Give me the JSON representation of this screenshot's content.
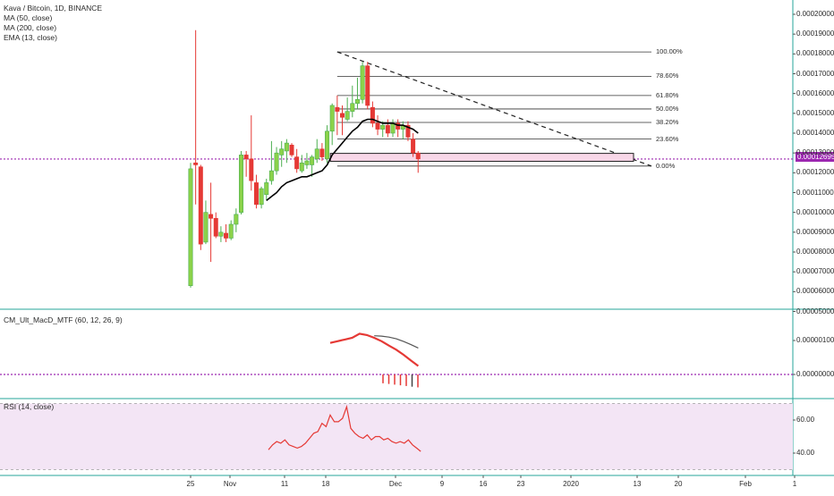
{
  "header": {
    "symbol_line": "Kava / Bitcoin, 1D, BINANCE",
    "indicators": [
      "MA (50, close)",
      "MA (200, close)",
      "EMA (13, close)"
    ]
  },
  "panes": {
    "macd_title": "CM_Ult_MacD_MTF (60, 12, 26, 9)",
    "rsi_title": "RSI (14, close)"
  },
  "last_price": "0.00012695",
  "colors": {
    "up": "#4caf50",
    "up_fill": "#8bd24a",
    "down": "#e53935",
    "purple": "#9c27b0",
    "teal": "#26a69a",
    "rsi_band": "#f3e5f5",
    "ema": "#000000"
  },
  "chart_data": [
    {
      "type": "candlestick",
      "pane": "price",
      "x_axis_ticks": [
        "25",
        "Nov",
        "11",
        "18",
        "Dec",
        "9",
        "16",
        "23",
        "2020",
        "13",
        "20",
        "Feb",
        "1"
      ],
      "y_axis_ticks": [
        "0.00020000",
        "0.00019000",
        "0.00018000",
        "0.00017000",
        "0.00016000",
        "0.00015000",
        "0.00014000",
        "0.00013000",
        "0.00012000",
        "0.00011000",
        "0.00010000",
        "0.00009000",
        "0.00008000",
        "0.00007000",
        "0.00006000",
        "0.00005000"
      ],
      "ylim": [
        5e-05,
        0.0002
      ],
      "candles": [
        {
          "o": 6.3e-05,
          "h": 0.000125,
          "l": 6.2e-05,
          "c": 0.000122
        },
        {
          "o": 0.000125,
          "h": 0.000192,
          "l": 0.000104,
          "c": 0.000124
        },
        {
          "o": 0.000123,
          "h": 0.000124,
          "l": 8.1e-05,
          "c": 8.4e-05
        },
        {
          "o": 8.5e-05,
          "h": 0.000106,
          "l": 8.4e-05,
          "c": 0.0001
        },
        {
          "o": 9.9e-05,
          "h": 0.000115,
          "l": 7.5e-05,
          "c": 9.7e-05
        },
        {
          "o": 9.7e-05,
          "h": 0.0001,
          "l": 8.7e-05,
          "c": 8.8e-05
        },
        {
          "o": 8.8e-05,
          "h": 9.3e-05,
          "l": 8.5e-05,
          "c": 9e-05
        },
        {
          "o": 8.95e-05,
          "h": 9.4e-05,
          "l": 8.5e-05,
          "c": 8.7e-05
        },
        {
          "o": 8.7e-05,
          "h": 9.6e-05,
          "l": 8.6e-05,
          "c": 9.4e-05
        },
        {
          "o": 9.4e-05,
          "h": 0.000102,
          "l": 9e-05,
          "c": 9.9e-05
        },
        {
          "o": 0.0001,
          "h": 0.000131,
          "l": 9.9e-05,
          "c": 0.000129
        },
        {
          "o": 0.000129,
          "h": 0.000131,
          "l": 0.000118,
          "c": 0.000127
        },
        {
          "o": 0.000127,
          "h": 0.000149,
          "l": 0.000111,
          "c": 0.000116
        },
        {
          "o": 0.000115,
          "h": 0.000119,
          "l": 0.000102,
          "c": 0.000104
        },
        {
          "o": 0.000104,
          "h": 0.000113,
          "l": 0.000102,
          "c": 0.000112
        },
        {
          "o": 0.000109,
          "h": 0.000117,
          "l": 0.000106,
          "c": 0.000115
        },
        {
          "o": 0.000116,
          "h": 0.000136,
          "l": 0.000114,
          "c": 0.000121
        },
        {
          "o": 0.000121,
          "h": 0.000133,
          "l": 0.000119,
          "c": 0.00013
        },
        {
          "o": 0.000129,
          "h": 0.000136,
          "l": 0.000123,
          "c": 0.000132
        },
        {
          "o": 0.000131,
          "h": 0.000137,
          "l": 0.000125,
          "c": 0.000135
        },
        {
          "o": 0.000134,
          "h": 0.000135,
          "l": 0.000128,
          "c": 0.000129
        },
        {
          "o": 0.000128,
          "h": 0.000132,
          "l": 0.00012,
          "c": 0.000122
        },
        {
          "o": 0.000121,
          "h": 0.000129,
          "l": 0.00012,
          "c": 0.000125
        },
        {
          "o": 0.000124,
          "h": 0.00013,
          "l": 0.000122,
          "c": 0.000126
        },
        {
          "o": 0.000124,
          "h": 0.000129,
          "l": 0.000118,
          "c": 0.000128
        },
        {
          "o": 0.000127,
          "h": 0.000137,
          "l": 0.000125,
          "c": 0.000132
        },
        {
          "o": 0.000132,
          "h": 0.000135,
          "l": 0.000126,
          "c": 0.000128
        },
        {
          "o": 0.000127,
          "h": 0.000144,
          "l": 0.000125,
          "c": 0.000141
        },
        {
          "o": 0.000141,
          "h": 0.000155,
          "l": 0.000134,
          "c": 0.000154
        },
        {
          "o": 0.000153,
          "h": 0.000159,
          "l": 0.000139,
          "c": 0.000151
        },
        {
          "o": 0.00015,
          "h": 0.000154,
          "l": 0.000139,
          "c": 0.000148
        },
        {
          "o": 0.000147,
          "h": 0.000158,
          "l": 0.000146,
          "c": 0.000151
        },
        {
          "o": 0.000151,
          "h": 0.000164,
          "l": 0.000148,
          "c": 0.000155
        },
        {
          "o": 0.000155,
          "h": 0.000168,
          "l": 0.000152,
          "c": 0.000157
        },
        {
          "o": 0.000157,
          "h": 0.000176,
          "l": 0.000155,
          "c": 0.000174
        },
        {
          "o": 0.000174,
          "h": 0.000176,
          "l": 0.000152,
          "c": 0.000154
        },
        {
          "o": 0.000153,
          "h": 0.000156,
          "l": 0.000143,
          "c": 0.000145
        },
        {
          "o": 0.000145,
          "h": 0.000149,
          "l": 0.000139,
          "c": 0.000142
        },
        {
          "o": 0.000142,
          "h": 0.000146,
          "l": 0.000138,
          "c": 0.000144
        },
        {
          "o": 0.000144,
          "h": 0.000147,
          "l": 0.000138,
          "c": 0.00014
        },
        {
          "o": 0.00014,
          "h": 0.000147,
          "l": 0.000138,
          "c": 0.000145
        },
        {
          "o": 0.000145,
          "h": 0.000147,
          "l": 0.000138,
          "c": 0.000142
        },
        {
          "o": 0.000142,
          "h": 0.000146,
          "l": 0.000137,
          "c": 0.000144
        },
        {
          "o": 0.000144,
          "h": 0.000146,
          "l": 0.000136,
          "c": 0.000138
        },
        {
          "o": 0.000137,
          "h": 0.00014,
          "l": 0.000128,
          "c": 0.00013
        },
        {
          "o": 0.00013,
          "h": 0.000131,
          "l": 0.00012,
          "c": 0.000127
        }
      ],
      "ema13": [
        null,
        null,
        null,
        null,
        null,
        null,
        null,
        null,
        null,
        null,
        null,
        null,
        null,
        null,
        null,
        0.000106,
        0.000108,
        0.00011,
        0.000113,
        0.000115,
        0.000116,
        0.000117,
        0.000118,
        0.000118,
        0.000119,
        0.00012,
        0.000121,
        0.000124,
        0.000129,
        0.000132,
        0.000135,
        0.000138,
        0.000141,
        0.000143,
        0.000146,
        0.000147,
        0.000147,
        0.000146,
        0.000145,
        0.000145,
        0.000145,
        0.000144,
        0.000144,
        0.000143,
        0.000142,
        0.00014
      ],
      "fibonacci": {
        "levels": [
          {
            "label": "100.00%",
            "value": 0.000181
          },
          {
            "label": "78.60%",
            "value": 0.0001687
          },
          {
            "label": "61.80%",
            "value": 0.000159
          },
          {
            "label": "50.00%",
            "value": 0.0001522
          },
          {
            "label": "38.20%",
            "value": 0.0001454
          },
          {
            "label": "23.60%",
            "value": 0.000137
          },
          {
            "label": "0.00%",
            "value": 0.0001234
          }
        ]
      },
      "highlight_zone": [
        0.0001258,
        0.0001298
      ],
      "last_price": 0.00012695
    },
    {
      "type": "line",
      "pane": "macd",
      "title": "CM_Ult_MacD_MTF (60, 12, 26, 9)",
      "y_axis_ticks": [
        "0.00000100",
        "0.00000000"
      ],
      "ylim": [
        -4e-07,
        1.6e-06
      ],
      "series": [
        {
          "values": [
            9.3e-07,
            9.8e-07,
            1.03e-06,
            1.08e-06,
            1.2e-06,
            1.16e-06,
            1.08e-06,
            9.8e-07,
            8.5e-07,
            7.3e-07,
            5.8e-07,
            4.1e-07,
            2.5e-07
          ]
        },
        {
          "values": [
            null,
            null,
            null,
            null,
            null,
            null,
            1.14e-06,
            1.13e-06,
            1.1e-06,
            1.05e-06,
            9.7e-07,
            8.8e-07,
            7.8e-07
          ]
        }
      ],
      "histogram": [
        -2.6e-07,
        -2.8e-07,
        -3e-07,
        -3.2e-07,
        -3.4e-07,
        -3.6e-07,
        -3.8e-07
      ]
    },
    {
      "type": "line",
      "pane": "rsi",
      "title": "RSI (14, close)",
      "y_axis_ticks": [
        "60.00",
        "40.00"
      ],
      "ylim": [
        25,
        75
      ],
      "series": [
        {
          "values": [
            42,
            45,
            47,
            46,
            48,
            45,
            44,
            43,
            44,
            46,
            49,
            52,
            53,
            58,
            56,
            63,
            59,
            59,
            61,
            68,
            55,
            52,
            50,
            49,
            51,
            48,
            50,
            50,
            48,
            49,
            47,
            46,
            47,
            46,
            48,
            45,
            43,
            41
          ]
        }
      ]
    }
  ]
}
